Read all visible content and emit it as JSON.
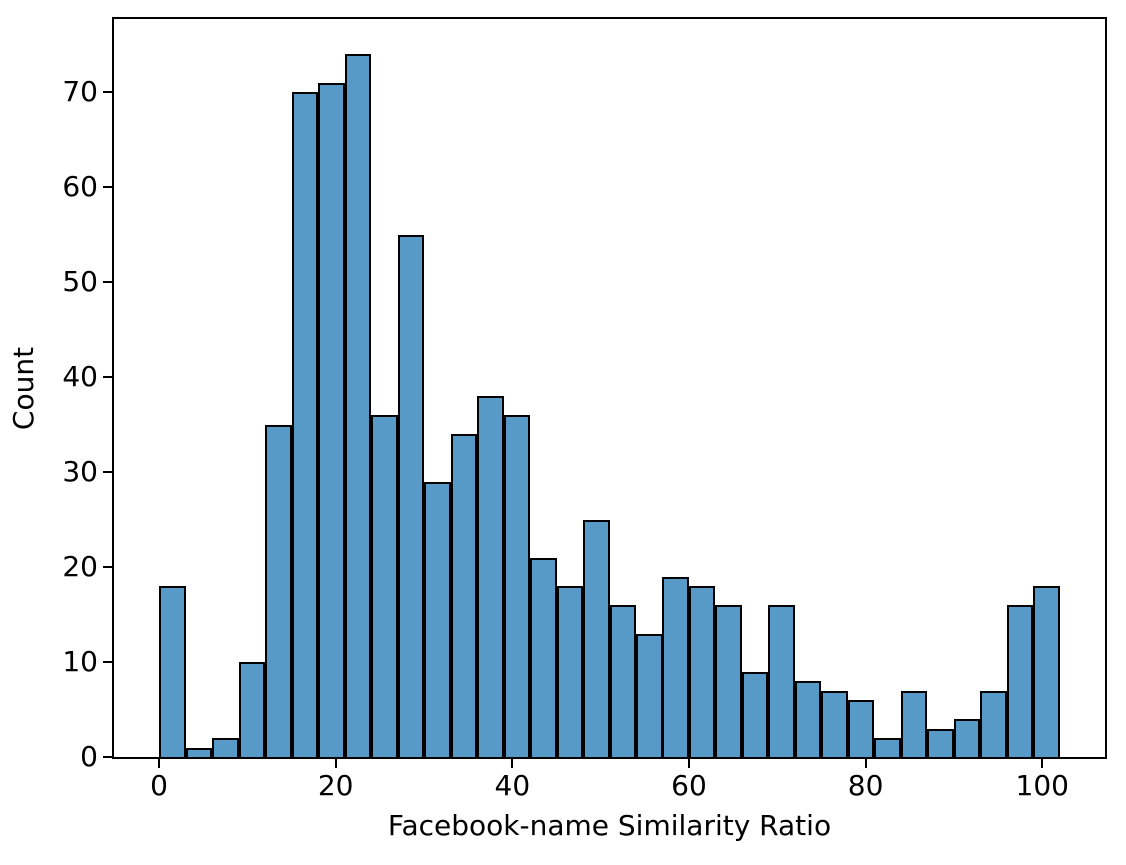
{
  "chart_data": {
    "type": "bar",
    "subtype": "histogram",
    "title": "",
    "xlabel": "Facebook-name Similarity Ratio",
    "ylabel": "Count",
    "bin_start": 0,
    "bin_width": 3,
    "bin_edges": [
      0,
      3,
      6,
      9,
      12,
      15,
      18,
      21,
      24,
      27,
      30,
      33,
      36,
      39,
      42,
      45,
      48,
      51,
      54,
      57,
      60,
      63,
      66,
      69,
      72,
      75,
      78,
      81,
      84,
      87,
      90,
      93,
      96,
      99,
      102
    ],
    "counts": [
      18,
      1,
      2,
      10,
      35,
      70,
      71,
      74,
      36,
      55,
      29,
      34,
      38,
      36,
      21,
      18,
      25,
      16,
      13,
      19,
      18,
      16,
      9,
      16,
      8,
      7,
      6,
      2,
      7,
      3,
      4,
      7,
      16,
      18
    ],
    "xlim": [
      -5.1,
      107.1
    ],
    "ylim": [
      0,
      77.7
    ],
    "xticks": [
      0,
      20,
      40,
      60,
      80,
      100
    ],
    "yticks": [
      0,
      10,
      20,
      30,
      40,
      50,
      60,
      70
    ],
    "grid": false,
    "legend": null,
    "colors": {
      "bar_fill": "#5799c7",
      "bar_edge": "#000000",
      "axis": "#000000",
      "text": "#000000",
      "background": "#ffffff"
    }
  }
}
